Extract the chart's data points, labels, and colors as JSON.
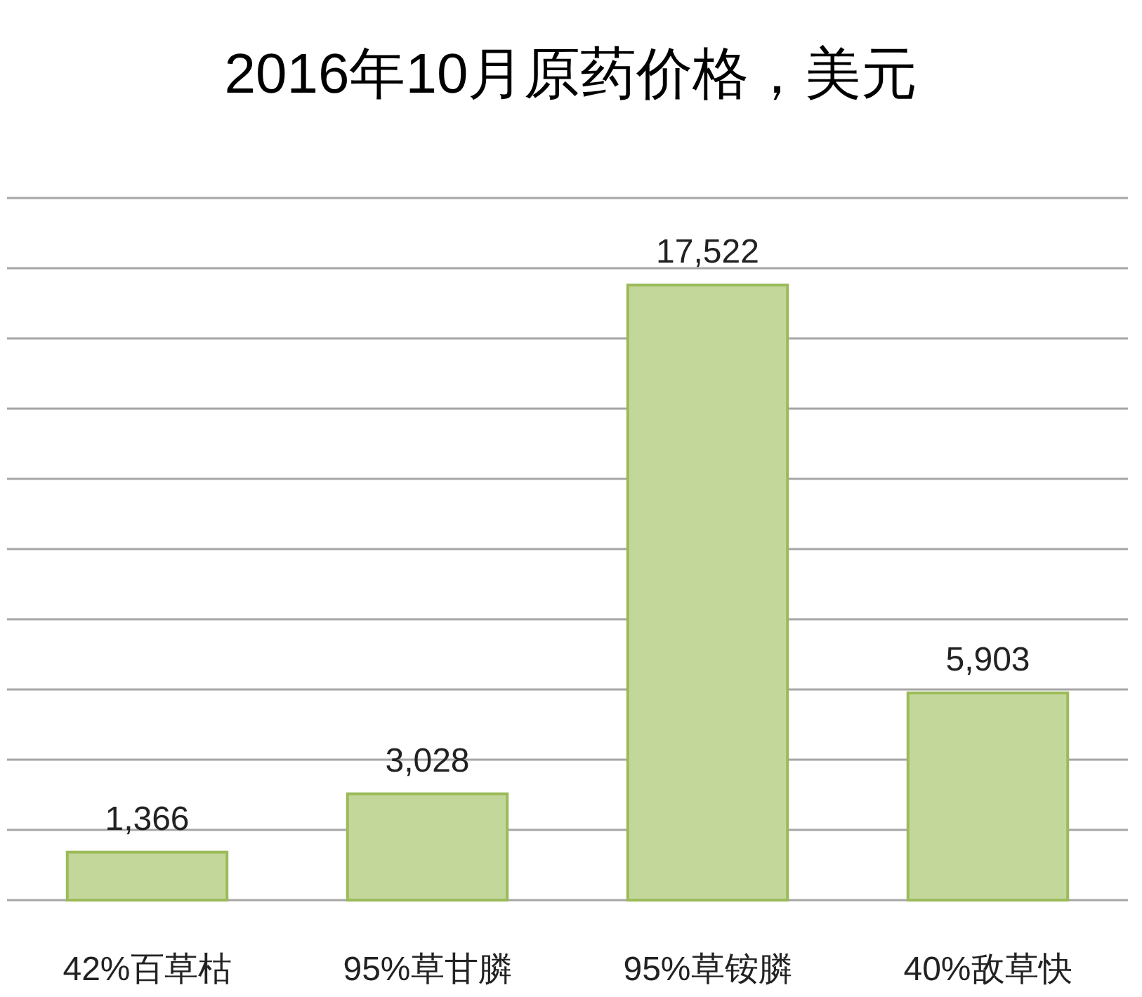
{
  "chart_data": {
    "type": "bar",
    "title": "2016年10月原药价格，美元",
    "categories": [
      "42%百草枯",
      "95%草甘膦",
      "95%草铵膦",
      "40%敌草快"
    ],
    "values": [
      1366,
      3028,
      17522,
      5903
    ],
    "value_labels": [
      "1,366",
      "3,028",
      "17,522",
      "5,903"
    ],
    "color": "#c4d79b",
    "grid": "y",
    "tick_labels": "x"
  }
}
